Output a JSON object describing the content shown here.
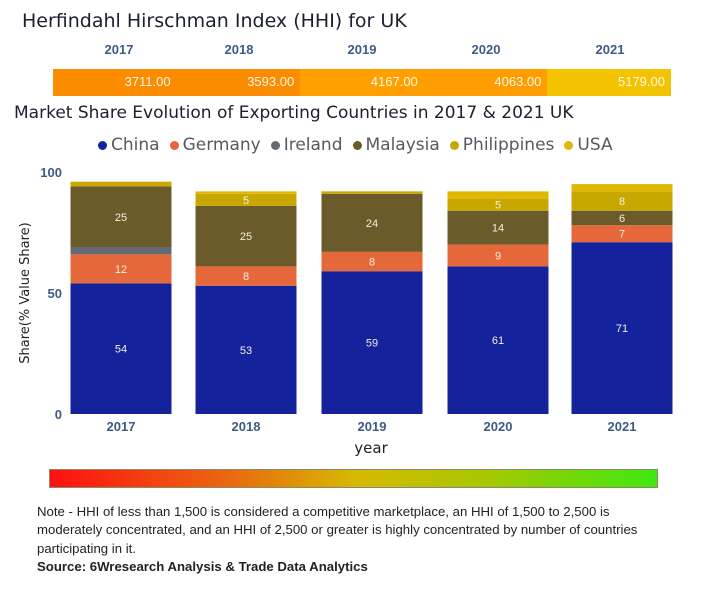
{
  "hhi": {
    "title": "Herfindahl Hirschman Index (HHI) for UK",
    "years": [
      "2017",
      "2018",
      "2019",
      "2020",
      "2021"
    ],
    "values": [
      "3711.00",
      "3593.00",
      "4167.00",
      "4063.00",
      "5179.00"
    ],
    "colors": [
      "#fb8c00",
      "#fb8c00",
      "#ffa000",
      "#ff9c00",
      "#f4c300"
    ]
  },
  "chart_data": {
    "type": "bar",
    "stacked": true,
    "title": "Market Share Evolution of Exporting Countries in 2017 & 2021 UK",
    "xlabel": "year",
    "ylabel": "Share(% Value Share)",
    "ylim": [
      0,
      100
    ],
    "yticks": [
      "0",
      "50",
      "100"
    ],
    "grid": false,
    "legend_position": "top",
    "categories": [
      "2017",
      "2018",
      "2019",
      "2020",
      "2021"
    ],
    "series": [
      {
        "name": "China",
        "color": "#14239c",
        "values": [
          54,
          53,
          59,
          61,
          71
        ],
        "labels": [
          "54",
          "53",
          "59",
          "61",
          "71"
        ]
      },
      {
        "name": "Germany",
        "color": "#e5683a",
        "values": [
          12,
          8,
          8,
          9,
          7
        ],
        "labels": [
          "12",
          "8",
          "8",
          "9",
          "7"
        ]
      },
      {
        "name": "Ireland",
        "color": "#646a75",
        "values": [
          3,
          0,
          0,
          0,
          0
        ],
        "labels": [
          "",
          "",
          "",
          "",
          ""
        ]
      },
      {
        "name": "Malaysia",
        "color": "#6b5b2b",
        "values": [
          25,
          25,
          24,
          14,
          6
        ],
        "labels": [
          "25",
          "25",
          "24",
          "14",
          "6"
        ]
      },
      {
        "name": "Philippines",
        "color": "#c8a800",
        "values": [
          2,
          5,
          1,
          5,
          8
        ],
        "labels": [
          "",
          "5",
          "",
          "5",
          "8"
        ]
      },
      {
        "name": "USA",
        "color": "#e0b800",
        "values": [
          0,
          1,
          0,
          3,
          3
        ],
        "labels": [
          "",
          "",
          "",
          "",
          ""
        ]
      }
    ]
  },
  "gradient_legend": {
    "colors": [
      "#ff1010",
      "#d8b800",
      "#3ee810"
    ]
  },
  "note": "Note - HHI of less than 1,500 is considered a competitive marketplace, an HHI of 1,500 to 2,500 is moderately concentrated, and an HHI of 2,500 or greater is highly concentrated by number of countries participating in it.",
  "source": "Source: 6Wresearch Analysis & Trade Data Analytics"
}
